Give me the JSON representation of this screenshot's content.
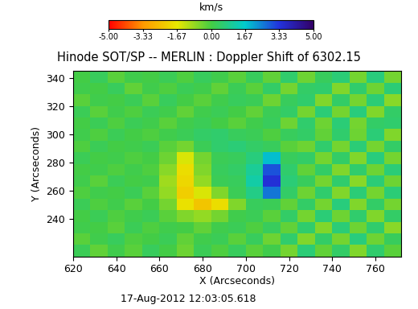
{
  "chart_data": {
    "type": "heatmap",
    "title": "Hinode SOT/SP -- MERLIN : Doppler Shift of 6302.15",
    "x_label": "X (Arcseconds)",
    "y_label": "Y (Arcseconds)",
    "annotation": "17-Aug-2012 12:03:05.618",
    "xlim": [
      620,
      772
    ],
    "ylim": [
      213,
      345
    ],
    "xticks": [
      620,
      640,
      660,
      680,
      700,
      720,
      740,
      760
    ],
    "yticks": [
      240,
      260,
      280,
      300,
      320,
      340
    ],
    "cells": [
      [
        0.2,
        -0.3,
        0.1,
        -0.2,
        0.3,
        0.0,
        -0.4,
        0.2,
        -0.1,
        0.3,
        -0.2,
        0.1,
        -0.5,
        0.6,
        -0.3,
        0.4,
        -0.6,
        0.5,
        -0.2
      ],
      [
        -0.2,
        0.1,
        0.3,
        -0.1,
        0.0,
        0.2,
        -0.3,
        0.1,
        0.2,
        -0.2,
        0.3,
        -0.4,
        0.5,
        -0.6,
        0.4,
        -0.5,
        0.7,
        -0.4,
        0.3
      ],
      [
        0.1,
        0.0,
        -0.2,
        0.2,
        -0.1,
        0.1,
        0.0,
        -0.3,
        0.1,
        0.2,
        -0.1,
        0.3,
        -0.3,
        0.5,
        -0.6,
        0.6,
        -0.4,
        0.5,
        -0.7
      ],
      [
        0.0,
        0.2,
        -0.1,
        0.1,
        0.2,
        -0.2,
        -0.6,
        -0.8,
        -0.5,
        0.1,
        0.2,
        -0.2,
        0.4,
        -0.5,
        0.6,
        -0.4,
        0.5,
        -0.6,
        0.4
      ],
      [
        0.2,
        -0.1,
        0.1,
        -0.2,
        0.0,
        -0.5,
        -1.8,
        -2.4,
        -1.9,
        -0.6,
        0.3,
        0.2,
        -0.3,
        0.4,
        -0.5,
        0.7,
        -0.6,
        0.4,
        -0.5
      ],
      [
        -0.1,
        0.1,
        0.0,
        0.2,
        -0.2,
        -0.8,
        -2.2,
        -1.5,
        -0.6,
        0.2,
        0.8,
        2.6,
        0.4,
        -0.4,
        0.5,
        -0.6,
        0.6,
        -0.5,
        0.6
      ],
      [
        0.1,
        -0.2,
        0.2,
        0.0,
        0.1,
        -0.9,
        -2.0,
        -0.8,
        0.2,
        0.3,
        1.2,
        3.4,
        0.6,
        0.3,
        -0.5,
        0.5,
        -0.7,
        0.6,
        -0.4
      ],
      [
        0.0,
        0.1,
        -0.1,
        0.1,
        -0.1,
        -0.7,
        -1.9,
        -0.6,
        0.3,
        0.4,
        1.0,
        3.0,
        0.5,
        -0.3,
        0.4,
        -0.6,
        0.5,
        -0.4,
        0.6
      ],
      [
        0.2,
        0.0,
        0.1,
        -0.1,
        0.0,
        -0.4,
        -1.5,
        -0.5,
        0.2,
        0.3,
        0.7,
        1.8,
        0.3,
        0.4,
        -0.5,
        0.4,
        -0.6,
        0.7,
        -0.5
      ],
      [
        -0.1,
        0.2,
        0.0,
        0.1,
        0.2,
        -0.2,
        -0.5,
        0.2,
        0.5,
        0.6,
        0.4,
        0.3,
        -0.2,
        -0.4,
        0.5,
        -0.5,
        0.6,
        -0.5,
        0.4
      ],
      [
        0.1,
        -0.1,
        0.2,
        0.0,
        -0.1,
        0.1,
        0.2,
        0.4,
        0.5,
        0.3,
        0.2,
        -0.1,
        0.3,
        0.4,
        -0.3,
        0.5,
        -0.4,
        0.6,
        -0.6
      ],
      [
        0.0,
        0.2,
        -0.1,
        0.2,
        0.1,
        -0.2,
        0.1,
        0.2,
        0.0,
        -0.2,
        0.1,
        0.3,
        -0.4,
        0.5,
        -0.4,
        0.6,
        -0.5,
        0.4,
        0.5
      ],
      [
        0.2,
        -0.2,
        0.1,
        -0.1,
        0.2,
        0.1,
        -0.3,
        0.1,
        0.2,
        0.0,
        -0.3,
        0.2,
        0.4,
        -0.5,
        0.6,
        -0.5,
        0.7,
        -0.6,
        0.4
      ],
      [
        -0.2,
        0.1,
        0.0,
        0.2,
        -0.2,
        0.3,
        0.0,
        -0.2,
        0.1,
        0.3,
        0.2,
        -0.4,
        0.3,
        0.5,
        -0.6,
        0.4,
        -0.5,
        0.6,
        -0.7
      ],
      [
        0.1,
        0.0,
        0.3,
        -0.3,
        0.1,
        -0.1,
        0.2,
        0.1,
        -0.3,
        0.2,
        -0.2,
        0.4,
        -0.5,
        0.4,
        0.5,
        -0.6,
        0.5,
        -0.4,
        0.6
      ],
      [
        0.0,
        0.3,
        -0.2,
        0.1,
        0.0,
        0.2,
        -0.1,
        0.3,
        0.1,
        -0.2,
        0.3,
        -0.3,
        0.5,
        -0.4,
        0.3,
        0.6,
        -0.5,
        0.7,
        -0.5
      ]
    ],
    "colorbar": {
      "label": "km/s",
      "range": [
        -5,
        5
      ],
      "ticks": [
        {
          "value": -5,
          "label": "-5.00"
        },
        {
          "value": -3.33,
          "label": "-3.33"
        },
        {
          "value": -1.67,
          "label": "-1.67"
        },
        {
          "value": 0,
          "label": "0.00"
        },
        {
          "value": 1.67,
          "label": "1.67"
        },
        {
          "value": 3.33,
          "label": "3.33"
        },
        {
          "value": 5,
          "label": "5.00"
        }
      ]
    }
  }
}
